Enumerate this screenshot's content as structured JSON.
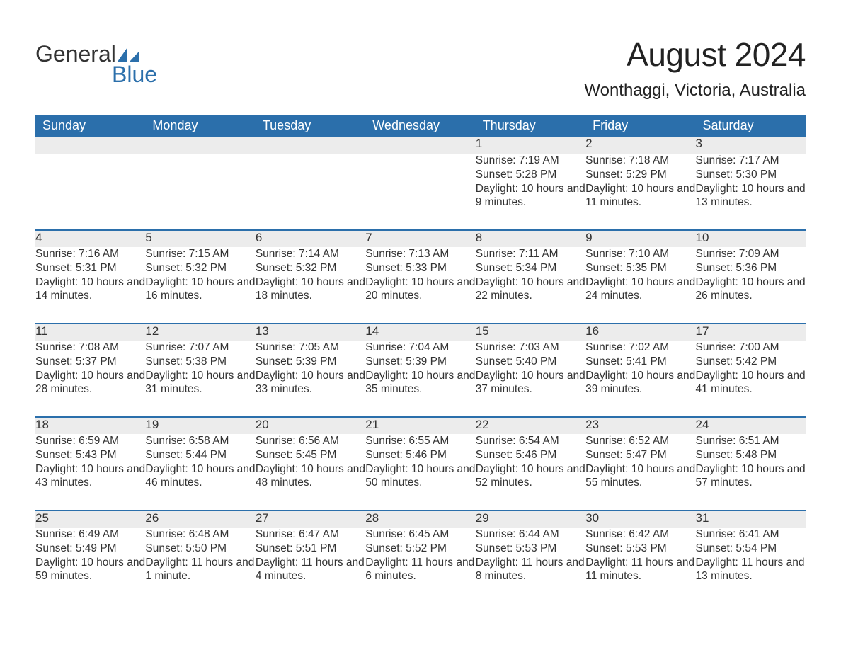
{
  "logo": {
    "word1": "General",
    "word2": "Blue",
    "icon_color": "#2b6fab"
  },
  "title": "August 2024",
  "location": "Wonthaggi, Victoria, Australia",
  "colors": {
    "header_bg": "#2b6fab",
    "header_text": "#ffffff",
    "daynum_bg": "#ececec",
    "daynum_border": "#2b6fab",
    "body_text": "#333333",
    "background": "#ffffff"
  },
  "weekdays": [
    "Sunday",
    "Monday",
    "Tuesday",
    "Wednesday",
    "Thursday",
    "Friday",
    "Saturday"
  ],
  "weeks": [
    [
      null,
      null,
      null,
      null,
      {
        "n": "1",
        "sunrise": "7:19 AM",
        "sunset": "5:28 PM",
        "daylight": "10 hours and 9 minutes."
      },
      {
        "n": "2",
        "sunrise": "7:18 AM",
        "sunset": "5:29 PM",
        "daylight": "10 hours and 11 minutes."
      },
      {
        "n": "3",
        "sunrise": "7:17 AM",
        "sunset": "5:30 PM",
        "daylight": "10 hours and 13 minutes."
      }
    ],
    [
      {
        "n": "4",
        "sunrise": "7:16 AM",
        "sunset": "5:31 PM",
        "daylight": "10 hours and 14 minutes."
      },
      {
        "n": "5",
        "sunrise": "7:15 AM",
        "sunset": "5:32 PM",
        "daylight": "10 hours and 16 minutes."
      },
      {
        "n": "6",
        "sunrise": "7:14 AM",
        "sunset": "5:32 PM",
        "daylight": "10 hours and 18 minutes."
      },
      {
        "n": "7",
        "sunrise": "7:13 AM",
        "sunset": "5:33 PM",
        "daylight": "10 hours and 20 minutes."
      },
      {
        "n": "8",
        "sunrise": "7:11 AM",
        "sunset": "5:34 PM",
        "daylight": "10 hours and 22 minutes."
      },
      {
        "n": "9",
        "sunrise": "7:10 AM",
        "sunset": "5:35 PM",
        "daylight": "10 hours and 24 minutes."
      },
      {
        "n": "10",
        "sunrise": "7:09 AM",
        "sunset": "5:36 PM",
        "daylight": "10 hours and 26 minutes."
      }
    ],
    [
      {
        "n": "11",
        "sunrise": "7:08 AM",
        "sunset": "5:37 PM",
        "daylight": "10 hours and 28 minutes."
      },
      {
        "n": "12",
        "sunrise": "7:07 AM",
        "sunset": "5:38 PM",
        "daylight": "10 hours and 31 minutes."
      },
      {
        "n": "13",
        "sunrise": "7:05 AM",
        "sunset": "5:39 PM",
        "daylight": "10 hours and 33 minutes."
      },
      {
        "n": "14",
        "sunrise": "7:04 AM",
        "sunset": "5:39 PM",
        "daylight": "10 hours and 35 minutes."
      },
      {
        "n": "15",
        "sunrise": "7:03 AM",
        "sunset": "5:40 PM",
        "daylight": "10 hours and 37 minutes."
      },
      {
        "n": "16",
        "sunrise": "7:02 AM",
        "sunset": "5:41 PM",
        "daylight": "10 hours and 39 minutes."
      },
      {
        "n": "17",
        "sunrise": "7:00 AM",
        "sunset": "5:42 PM",
        "daylight": "10 hours and 41 minutes."
      }
    ],
    [
      {
        "n": "18",
        "sunrise": "6:59 AM",
        "sunset": "5:43 PM",
        "daylight": "10 hours and 43 minutes."
      },
      {
        "n": "19",
        "sunrise": "6:58 AM",
        "sunset": "5:44 PM",
        "daylight": "10 hours and 46 minutes."
      },
      {
        "n": "20",
        "sunrise": "6:56 AM",
        "sunset": "5:45 PM",
        "daylight": "10 hours and 48 minutes."
      },
      {
        "n": "21",
        "sunrise": "6:55 AM",
        "sunset": "5:46 PM",
        "daylight": "10 hours and 50 minutes."
      },
      {
        "n": "22",
        "sunrise": "6:54 AM",
        "sunset": "5:46 PM",
        "daylight": "10 hours and 52 minutes."
      },
      {
        "n": "23",
        "sunrise": "6:52 AM",
        "sunset": "5:47 PM",
        "daylight": "10 hours and 55 minutes."
      },
      {
        "n": "24",
        "sunrise": "6:51 AM",
        "sunset": "5:48 PM",
        "daylight": "10 hours and 57 minutes."
      }
    ],
    [
      {
        "n": "25",
        "sunrise": "6:49 AM",
        "sunset": "5:49 PM",
        "daylight": "10 hours and 59 minutes."
      },
      {
        "n": "26",
        "sunrise": "6:48 AM",
        "sunset": "5:50 PM",
        "daylight": "11 hours and 1 minute."
      },
      {
        "n": "27",
        "sunrise": "6:47 AM",
        "sunset": "5:51 PM",
        "daylight": "11 hours and 4 minutes."
      },
      {
        "n": "28",
        "sunrise": "6:45 AM",
        "sunset": "5:52 PM",
        "daylight": "11 hours and 6 minutes."
      },
      {
        "n": "29",
        "sunrise": "6:44 AM",
        "sunset": "5:53 PM",
        "daylight": "11 hours and 8 minutes."
      },
      {
        "n": "30",
        "sunrise": "6:42 AM",
        "sunset": "5:53 PM",
        "daylight": "11 hours and 11 minutes."
      },
      {
        "n": "31",
        "sunrise": "6:41 AM",
        "sunset": "5:54 PM",
        "daylight": "11 hours and 13 minutes."
      }
    ]
  ],
  "labels": {
    "sunrise": "Sunrise: ",
    "sunset": "Sunset: ",
    "daylight": "Daylight: "
  }
}
